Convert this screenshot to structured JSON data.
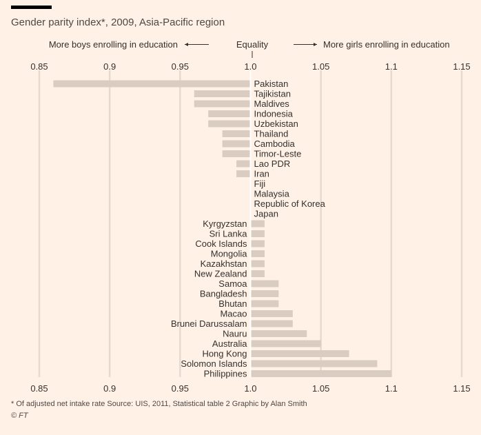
{
  "header": {
    "title": "Gender parity index*, 2009, Asia-Pacific region"
  },
  "annotations": {
    "left": "More boys enrolling in education",
    "center": "Equality",
    "right": "More girls enrolling in education"
  },
  "footer": {
    "footnote": "* Of adjusted net intake rate   Source: UIS, 2011, Statistical table 2   Graphic by Alan Smith",
    "copyright": "© FT"
  },
  "colors": {
    "background": "#FFF1E5",
    "bar": "#D9CCC1",
    "grid": "#E6D9CE",
    "equality_line": "#FFFFFF",
    "text": "#33302E"
  },
  "chart_data": {
    "type": "bar",
    "orientation": "horizontal",
    "baseline": 1.0,
    "xlim": [
      0.85,
      1.15
    ],
    "ticks": [
      0.85,
      0.9,
      0.95,
      1.0,
      1.05,
      1.1,
      1.15
    ],
    "tick_labels": [
      "0.85",
      "0.9",
      "0.95",
      "1.0",
      "1.05",
      "1.1",
      "1.15"
    ],
    "categories": [
      "Pakistan",
      "Tajikistan",
      "Maldives",
      "Indonesia",
      "Uzbekistan",
      "Thailand",
      "Cambodia",
      "Timor-Leste",
      "Lao PDR",
      "Iran",
      "Fiji",
      "Malaysia",
      "Republic of Korea",
      "Japan",
      "Kyrgyzstan",
      "Sri Lanka",
      "Cook Islands",
      "Mongolia",
      "Kazakhstan",
      "New Zealand",
      "Samoa",
      "Bangladesh",
      "Bhutan",
      "Macao",
      "Brunei Darussalam",
      "Nauru",
      "Australia",
      "Hong Kong",
      "Solomon Islands",
      "Philippines"
    ],
    "values": [
      0.86,
      0.96,
      0.96,
      0.97,
      0.97,
      0.98,
      0.98,
      0.98,
      0.99,
      0.99,
      1.0,
      1.0,
      1.0,
      1.0,
      1.01,
      1.01,
      1.01,
      1.01,
      1.01,
      1.01,
      1.02,
      1.02,
      1.02,
      1.03,
      1.03,
      1.04,
      1.05,
      1.07,
      1.09,
      1.1
    ],
    "grid": true,
    "tick_labels_position": "top and bottom"
  }
}
